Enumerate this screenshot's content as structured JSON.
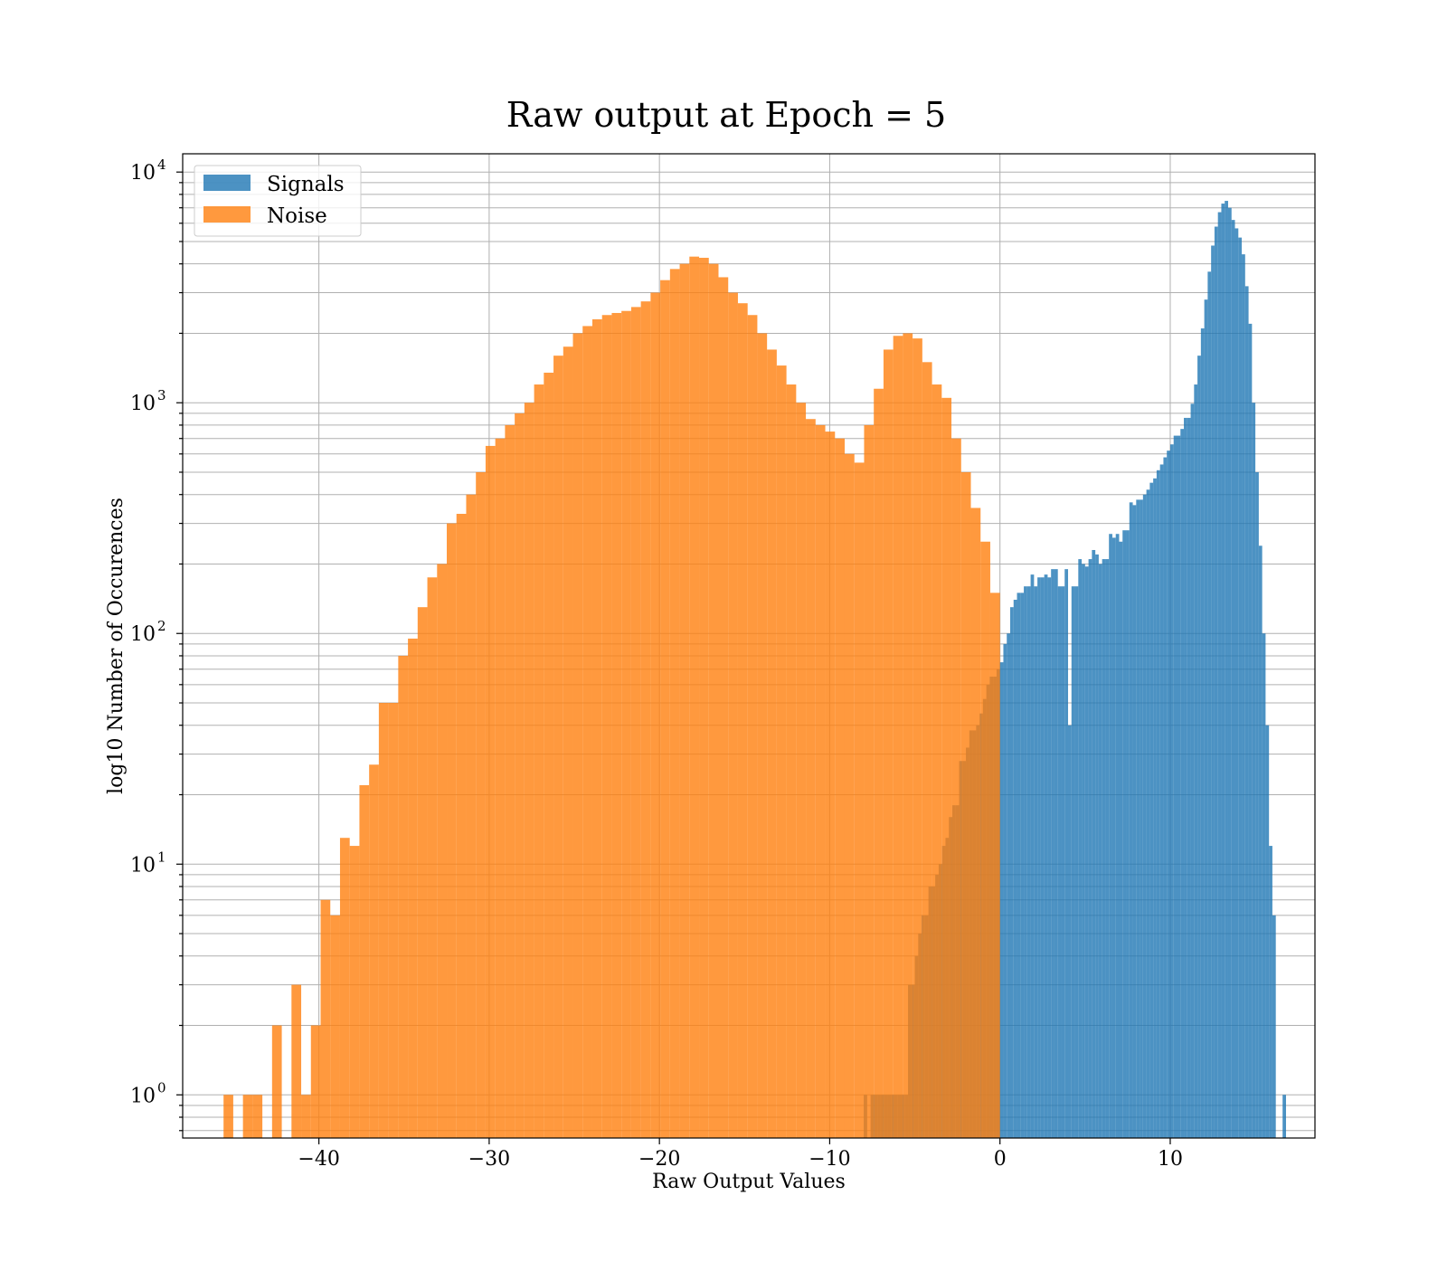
{
  "chart_data": {
    "type": "bar",
    "title": "Raw output at Epoch = 5",
    "xlabel": "Raw Output Values",
    "ylabel": "log10 Number of Occurences",
    "xlim": [
      -48,
      18.5
    ],
    "ylim": [
      0.65,
      12000
    ],
    "yscale": "log",
    "grid": true,
    "grid_minor_y": true,
    "legend_position": "top-left",
    "x_ticks": [
      -40,
      -30,
      -20,
      -10,
      0,
      10
    ],
    "x_tick_labels": [
      "−40",
      "−30",
      "−20",
      "−10",
      "0",
      "10"
    ],
    "y_ticks": [
      {
        "value": 1,
        "base": "10",
        "exp": "0"
      },
      {
        "value": 10,
        "base": "10",
        "exp": "1"
      },
      {
        "value": 100,
        "base": "10",
        "exp": "2"
      },
      {
        "value": 1000,
        "base": "10",
        "exp": "3"
      },
      {
        "value": 10000,
        "base": "10",
        "exp": "4"
      }
    ],
    "series": [
      {
        "name": "Signals",
        "color": "#1f77b4",
        "opacity": 0.8,
        "bin_start": -8.2,
        "bin_width": 0.2,
        "values": [
          0,
          1,
          0,
          1,
          1,
          1,
          1,
          1,
          1,
          1,
          1,
          1,
          1,
          1,
          3,
          3,
          4,
          5,
          6,
          6,
          8,
          8,
          9,
          10,
          12,
          13,
          16,
          18,
          18,
          28,
          28,
          32,
          38,
          38,
          40,
          45,
          52,
          60,
          65,
          65,
          70,
          75,
          90,
          100,
          130,
          140,
          150,
          150,
          160,
          160,
          180,
          160,
          175,
          175,
          180,
          175,
          190,
          190,
          160,
          160,
          190,
          40,
          160,
          160,
          210,
          200,
          195,
          210,
          230,
          220,
          200,
          210,
          210,
          270,
          260,
          270,
          250,
          280,
          280,
          370,
          360,
          380,
          380,
          400,
          420,
          450,
          470,
          510,
          540,
          580,
          620,
          660,
          720,
          720,
          770,
          860,
          860,
          990,
          1200,
          1600,
          2100,
          2800,
          3700,
          4800,
          5800,
          6700,
          7300,
          7500,
          7000,
          6200,
          5700,
          5200,
          4400,
          3200,
          2200,
          1000,
          500,
          240,
          100,
          40,
          12,
          6,
          0,
          0,
          1
        ]
      },
      {
        "name": "Noise",
        "color": "#ff7f0e",
        "opacity": 0.8,
        "bin_start": -45.6,
        "bin_width": 0.57,
        "values": [
          1,
          0,
          1,
          1,
          0,
          2,
          0,
          3,
          1,
          2,
          7,
          6,
          13,
          12,
          22,
          27,
          50,
          50,
          80,
          95,
          130,
          175,
          200,
          300,
          330,
          400,
          500,
          650,
          700,
          800,
          900,
          1000,
          1200,
          1350,
          1600,
          1750,
          2000,
          2150,
          2300,
          2400,
          2450,
          2500,
          2600,
          2750,
          3000,
          3400,
          3800,
          4000,
          4300,
          4250,
          4000,
          3500,
          3000,
          2700,
          2400,
          2000,
          1700,
          1450,
          1200,
          1000,
          850,
          800,
          750,
          700,
          600,
          550,
          800,
          1150,
          1700,
          1950,
          2000,
          1900,
          1500,
          1200,
          1050,
          700,
          500,
          350,
          250,
          150
        ]
      }
    ]
  }
}
